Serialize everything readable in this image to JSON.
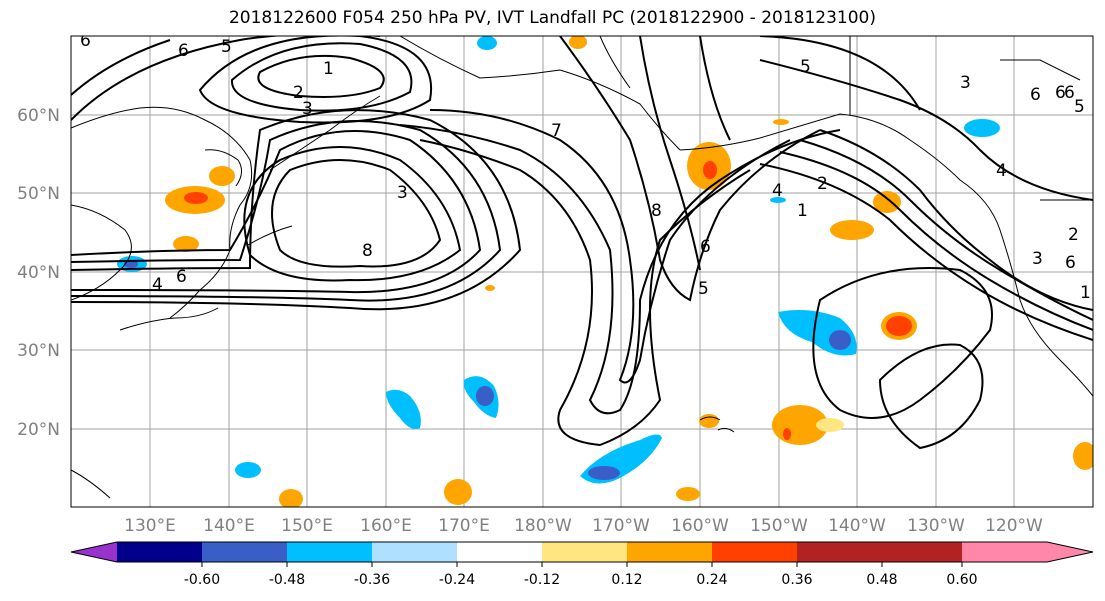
{
  "title": "2018122600 F054 250 hPa PV, IVT Landfall PC (2018122900 - 2018123100)",
  "lat_labels": [
    "60°N",
    "50°N",
    "40°N",
    "30°N",
    "20°N"
  ],
  "lon_labels": [
    "130°E",
    "140°E",
    "150°E",
    "160°E",
    "170°E",
    "180°W",
    "170°W",
    "160°W",
    "150°W",
    "140°W",
    "130°W",
    "120°W"
  ],
  "colorbar": {
    "colors": [
      "#9932cc",
      "#00008b",
      "#3a5ec8",
      "#00bfff",
      "#b0e0ff",
      "#ffffff",
      "#ffe680",
      "#ffa500",
      "#ff4000",
      "#b22222",
      "#ff88aa"
    ],
    "tick_labels": [
      "-0.60",
      "-0.48",
      "-0.36",
      "-0.24",
      "-0.12",
      "0.12",
      "0.24",
      "0.36",
      "0.48",
      "0.60"
    ]
  },
  "contour_labels": [
    "1",
    "2",
    "3",
    "5",
    "6",
    "6",
    "5",
    "1",
    "2",
    "3",
    "4",
    "5",
    "6",
    "7",
    "8",
    "8",
    "3",
    "4",
    "6",
    "1",
    "2",
    "4",
    "5",
    "6",
    "3",
    "6",
    "6",
    "6"
  ]
}
